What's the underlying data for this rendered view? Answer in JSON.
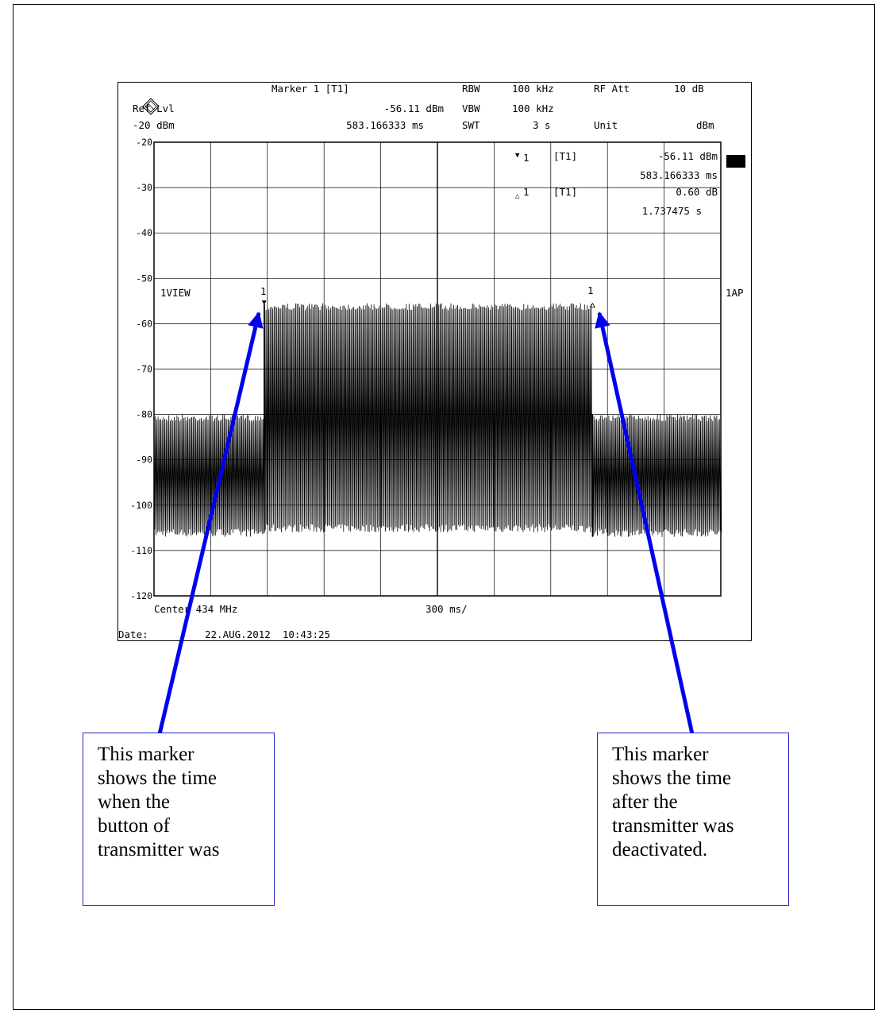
{
  "instrument": {
    "marker_label": "Marker 1 [T1]",
    "ref_lvl_label": "Ref Lvl",
    "ref_lvl_value": "-20 dBm",
    "marker_level": "-56.11 dBm",
    "marker_time": "583.166333 ms",
    "rbw_label": "RBW",
    "rbw_value": "100 kHz",
    "vbw_label": "VBW",
    "vbw_value": "100 kHz",
    "swt_label": "SWT",
    "swt_value": "3 s",
    "rfatt_label": "RF Att",
    "rfatt_value": "10 dB",
    "unit_label": "Unit",
    "unit_value": "dBm",
    "view_label": "1VIEW",
    "trace_label": "1AP",
    "center": "Center 434 MHz",
    "span": "300 ms/",
    "date_label": "Date:",
    "date_value": "22.AUG.2012  10:43:25"
  },
  "markers": {
    "m1_symbol": "▼",
    "m1_index": "1",
    "m1_tag": "[T1]",
    "m1_level": "-56.11 dBm",
    "m1_time": "583.166333 ms",
    "d1_symbol": "△",
    "d1_index": "1",
    "d1_tag": "[T1]",
    "d1_level": "0.60 dB",
    "d1_time": "1.737475 s",
    "m1_flag": "1",
    "d1_flag": "1"
  },
  "annotations": {
    "left_lines": [
      "This marker",
      "shows the time",
      "when the",
      "button of",
      "transmitter was"
    ],
    "right_lines": [
      "This marker",
      "shows the time",
      "after the",
      "transmitter was",
      "deactivated."
    ],
    "arrow_color": "#0000ee"
  },
  "chart_data": {
    "type": "line",
    "x_unit": "s",
    "xlim": [
      0,
      3
    ],
    "x_divisions": 10,
    "ylim": [
      -120,
      -20
    ],
    "yticks": [
      -20,
      -30,
      -40,
      -50,
      -60,
      -70,
      -80,
      -90,
      -100,
      -110,
      -120
    ],
    "ylabel": "",
    "xlabel": "",
    "series": [
      {
        "segments": [
          {
            "x0": 0.0,
            "x1": 0.583,
            "upper": -80,
            "lower": -107
          },
          {
            "x0": 0.583,
            "x1": 2.321,
            "upper": -55.5,
            "lower": -106
          },
          {
            "x0": 2.321,
            "x1": 3.0,
            "upper": -80,
            "lower": -107
          }
        ]
      }
    ],
    "markers": [
      {
        "name": "1",
        "x": 0.583,
        "y": -56.11
      },
      {
        "name": "delta 1",
        "x": 2.321,
        "y": -55.51
      }
    ]
  }
}
